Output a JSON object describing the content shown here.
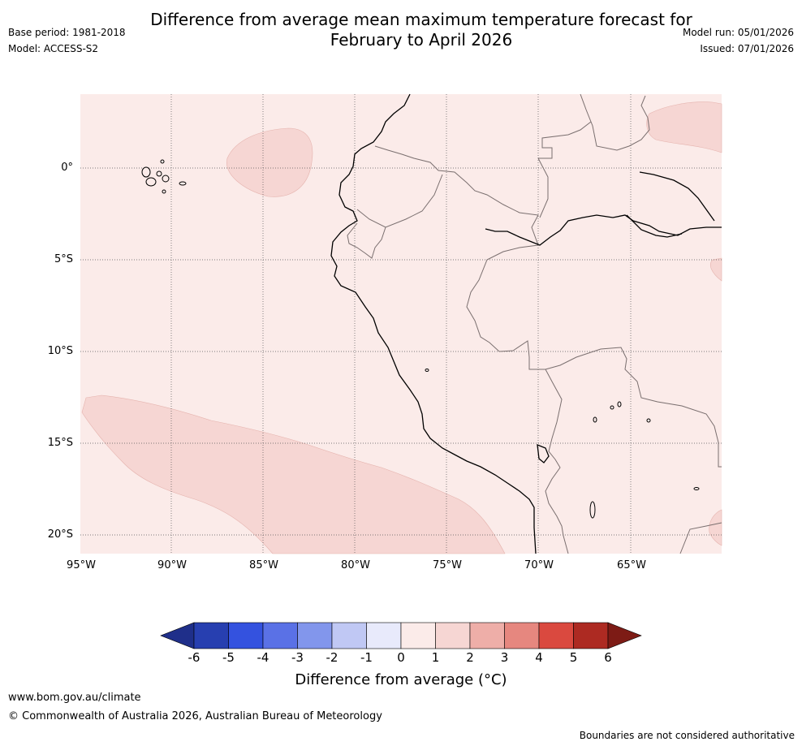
{
  "title_line1": "Difference from average mean maximum temperature forecast for",
  "title_line2": "February to April 2026",
  "base_period": "Base period: 1981-2018",
  "model": "Model: ACCESS-S2",
  "model_run": "Model run: 05/01/2026",
  "issued": "Issued: 07/01/2026",
  "map": {
    "lat_labels": [
      "0°",
      "5°S",
      "10°S",
      "15°S",
      "20°S"
    ],
    "lon_labels": [
      "95°W",
      "90°W",
      "85°W",
      "80°W",
      "75°W",
      "70°W",
      "65°W"
    ],
    "background_color": "#fbebe9",
    "anomaly_patch_color": "#f6d6d3"
  },
  "colorbar": {
    "ticks": [
      "-6",
      "-5",
      "-4",
      "-3",
      "-2",
      "-1",
      "0",
      "1",
      "2",
      "3",
      "4",
      "5",
      "6"
    ],
    "colors": [
      "#1f2f8a",
      "#273fb0",
      "#3452df",
      "#5a71e6",
      "#8296ec",
      "#c0c8f4",
      "#e8eafb",
      "#fbebe9",
      "#f6d6d3",
      "#eeaea8",
      "#e6877f",
      "#da493f",
      "#ad2a22",
      "#7d1b15"
    ],
    "label": "Difference from average (°C)"
  },
  "footer": {
    "url": "www.bom.gov.au/climate",
    "copyright": "© Commonwealth of Australia 2026, Australian Bureau of Meteorology",
    "disclaimer": "Boundaries are not considered authoritative"
  }
}
